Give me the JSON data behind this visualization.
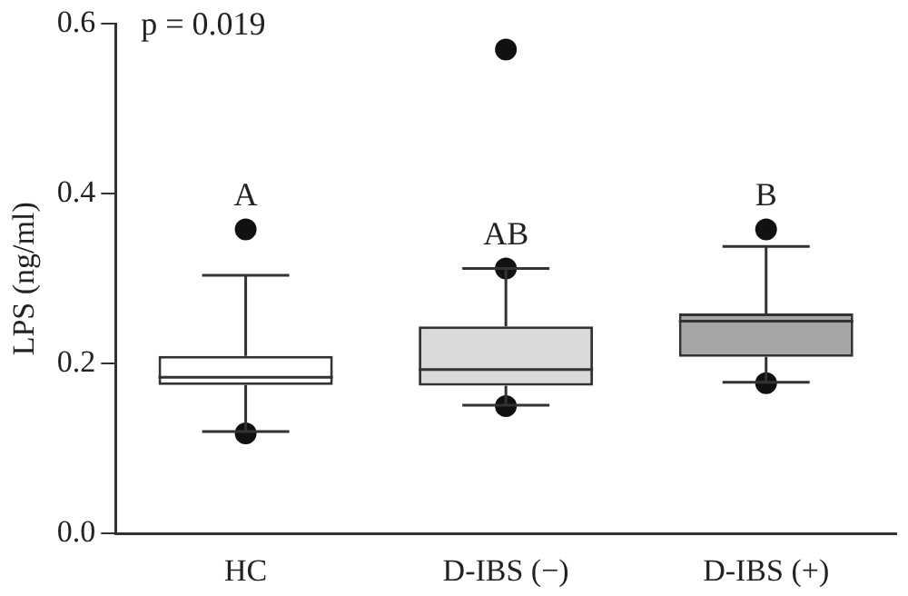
{
  "chart_data": {
    "type": "box",
    "ylabel": "LPS (ng/ml)",
    "categories": [
      "HC",
      "D-IBS (−)",
      "D-IBS (+)"
    ],
    "colors": [
      "#ffffff",
      "#d9d9d9",
      "#a6a6a6"
    ],
    "boxes": [
      {
        "low": 0.12,
        "q1": 0.175,
        "median": 0.184,
        "q3": 0.209,
        "high": 0.304,
        "outliers": [
          0.358,
          0.118
        ]
      },
      {
        "low": 0.151,
        "q1": 0.174,
        "median": 0.193,
        "q3": 0.244,
        "high": 0.312,
        "outliers": [
          0.57,
          0.312,
          0.15
        ]
      },
      {
        "low": 0.178,
        "q1": 0.208,
        "median": 0.25,
        "q3": 0.259,
        "high": 0.338,
        "outliers": [
          0.358,
          0.177
        ]
      }
    ],
    "ylim": [
      0,
      0.6
    ],
    "yticks": [
      {
        "value": 0,
        "label": "0.0"
      },
      0.2,
      0.4,
      0.6
    ],
    "grid": false,
    "legend": false,
    "annotations": [
      "p = 0.019",
      "A",
      "AB",
      "B"
    ]
  }
}
